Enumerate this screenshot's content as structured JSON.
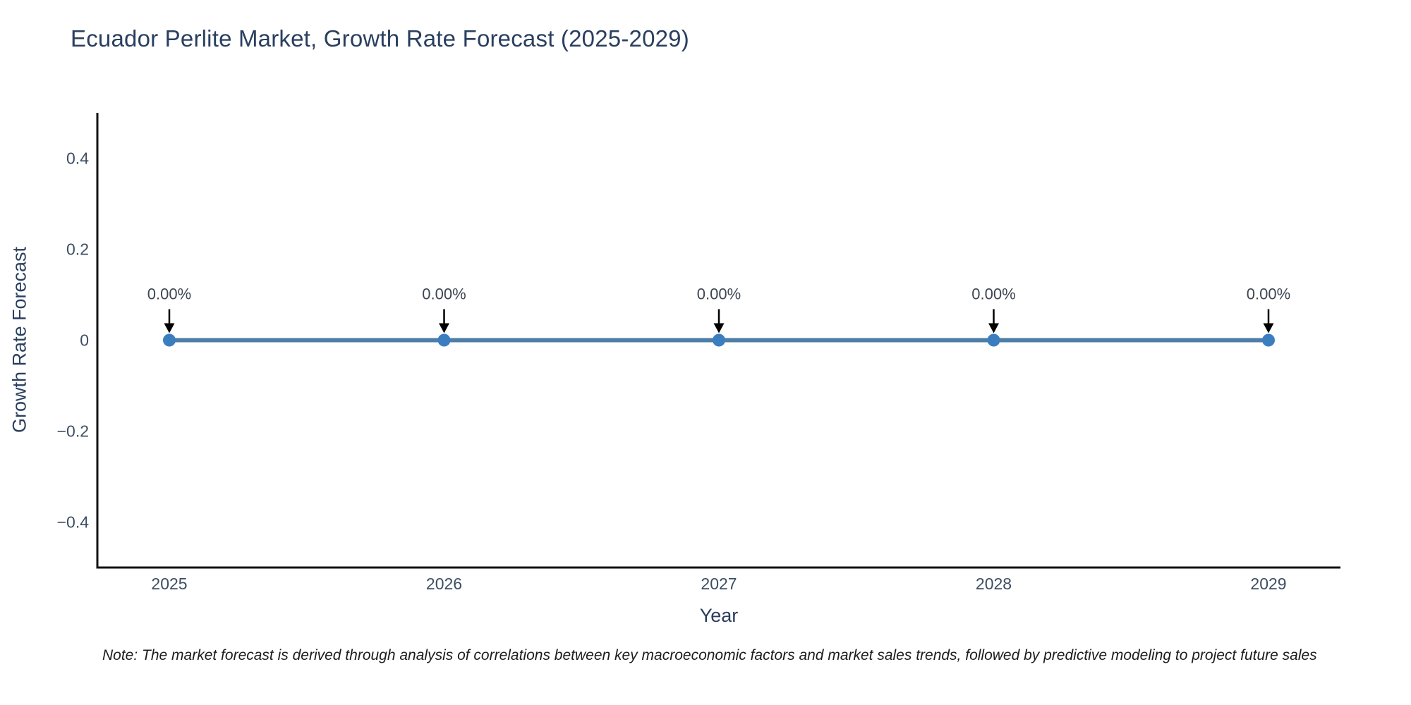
{
  "note": "Note: The market forecast is derived through analysis of correlations between key macroeconomic factors and market sales trends, followed by predictive modeling to project future sales",
  "chart_data": {
    "type": "line",
    "title": "Ecuador Perlite Market, Growth Rate Forecast (2025-2029)",
    "xlabel": "Year",
    "ylabel": "Growth Rate Forecast",
    "categories": [
      "2025",
      "2026",
      "2027",
      "2028",
      "2029"
    ],
    "series": [
      {
        "name": "Growth Rate Forecast",
        "values": [
          0,
          0,
          0,
          0,
          0
        ],
        "labels": [
          "0.00%",
          "0.00%",
          "0.00%",
          "0.00%",
          "0.00%"
        ]
      }
    ],
    "ylim": [
      -0.5,
      0.5
    ],
    "yticks": {
      "values": [
        0.4,
        0.2,
        0,
        -0.2,
        -0.4
      ],
      "labels": [
        "0.4",
        "0.2",
        "0",
        "−0.2",
        "−0.4"
      ]
    },
    "grid": false,
    "legend": false,
    "colors": {
      "line": "#4e7ea6",
      "marker": "#3b7ec0",
      "axis": "#111111",
      "annotation_arrow": "#000000",
      "title_text": "#2a3f5f",
      "tick_text": "#3d4e63"
    }
  }
}
